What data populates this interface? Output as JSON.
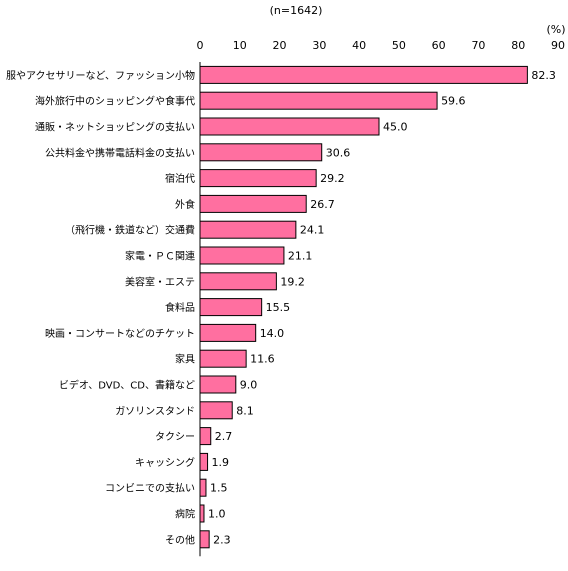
{
  "chart_data": {
    "type": "bar",
    "orientation": "horizontal",
    "sample_note": "(n=1642)",
    "unit_label": "(%)",
    "xlim": [
      0,
      90
    ],
    "ticks": [
      0,
      10,
      20,
      30,
      40,
      50,
      60,
      70,
      80,
      90
    ],
    "grid": false,
    "bar_color": "#ff6fa0",
    "bar_stroke": "#000000",
    "categories": [
      "服やアクセサリーなど、ファッション小物",
      "海外旅行中のショッピングや食事代",
      "通販・ネットショッピングの支払い",
      "公共料金や携帯電話料金の支払い",
      "宿泊代",
      "外食",
      "（飛行機・鉄道など）交通費",
      "家電・ＰＣ関連",
      "美容室・エステ",
      "食料品",
      "映画・コンサートなどのチケット",
      "家具",
      "ビデオ、DVD、CD、書籍など",
      "ガソリンスタンド",
      "タクシー",
      "キャッシング",
      "コンビニでの支払い",
      "病院",
      "その他"
    ],
    "values": [
      82.3,
      59.6,
      45.0,
      30.6,
      29.2,
      26.7,
      24.1,
      21.1,
      19.2,
      15.5,
      14.0,
      11.6,
      9.0,
      8.1,
      2.7,
      1.9,
      1.5,
      1.0,
      2.3
    ],
    "value_labels": [
      "82.3",
      "59.6",
      "45.0",
      "30.6",
      "29.2",
      "26.7",
      "24.1",
      "21.1",
      "19.2",
      "15.5",
      "14.0",
      "11.6",
      "9.0",
      "8.1",
      "2.7",
      "1.9",
      "1.5",
      "1.0",
      "2.3"
    ]
  }
}
